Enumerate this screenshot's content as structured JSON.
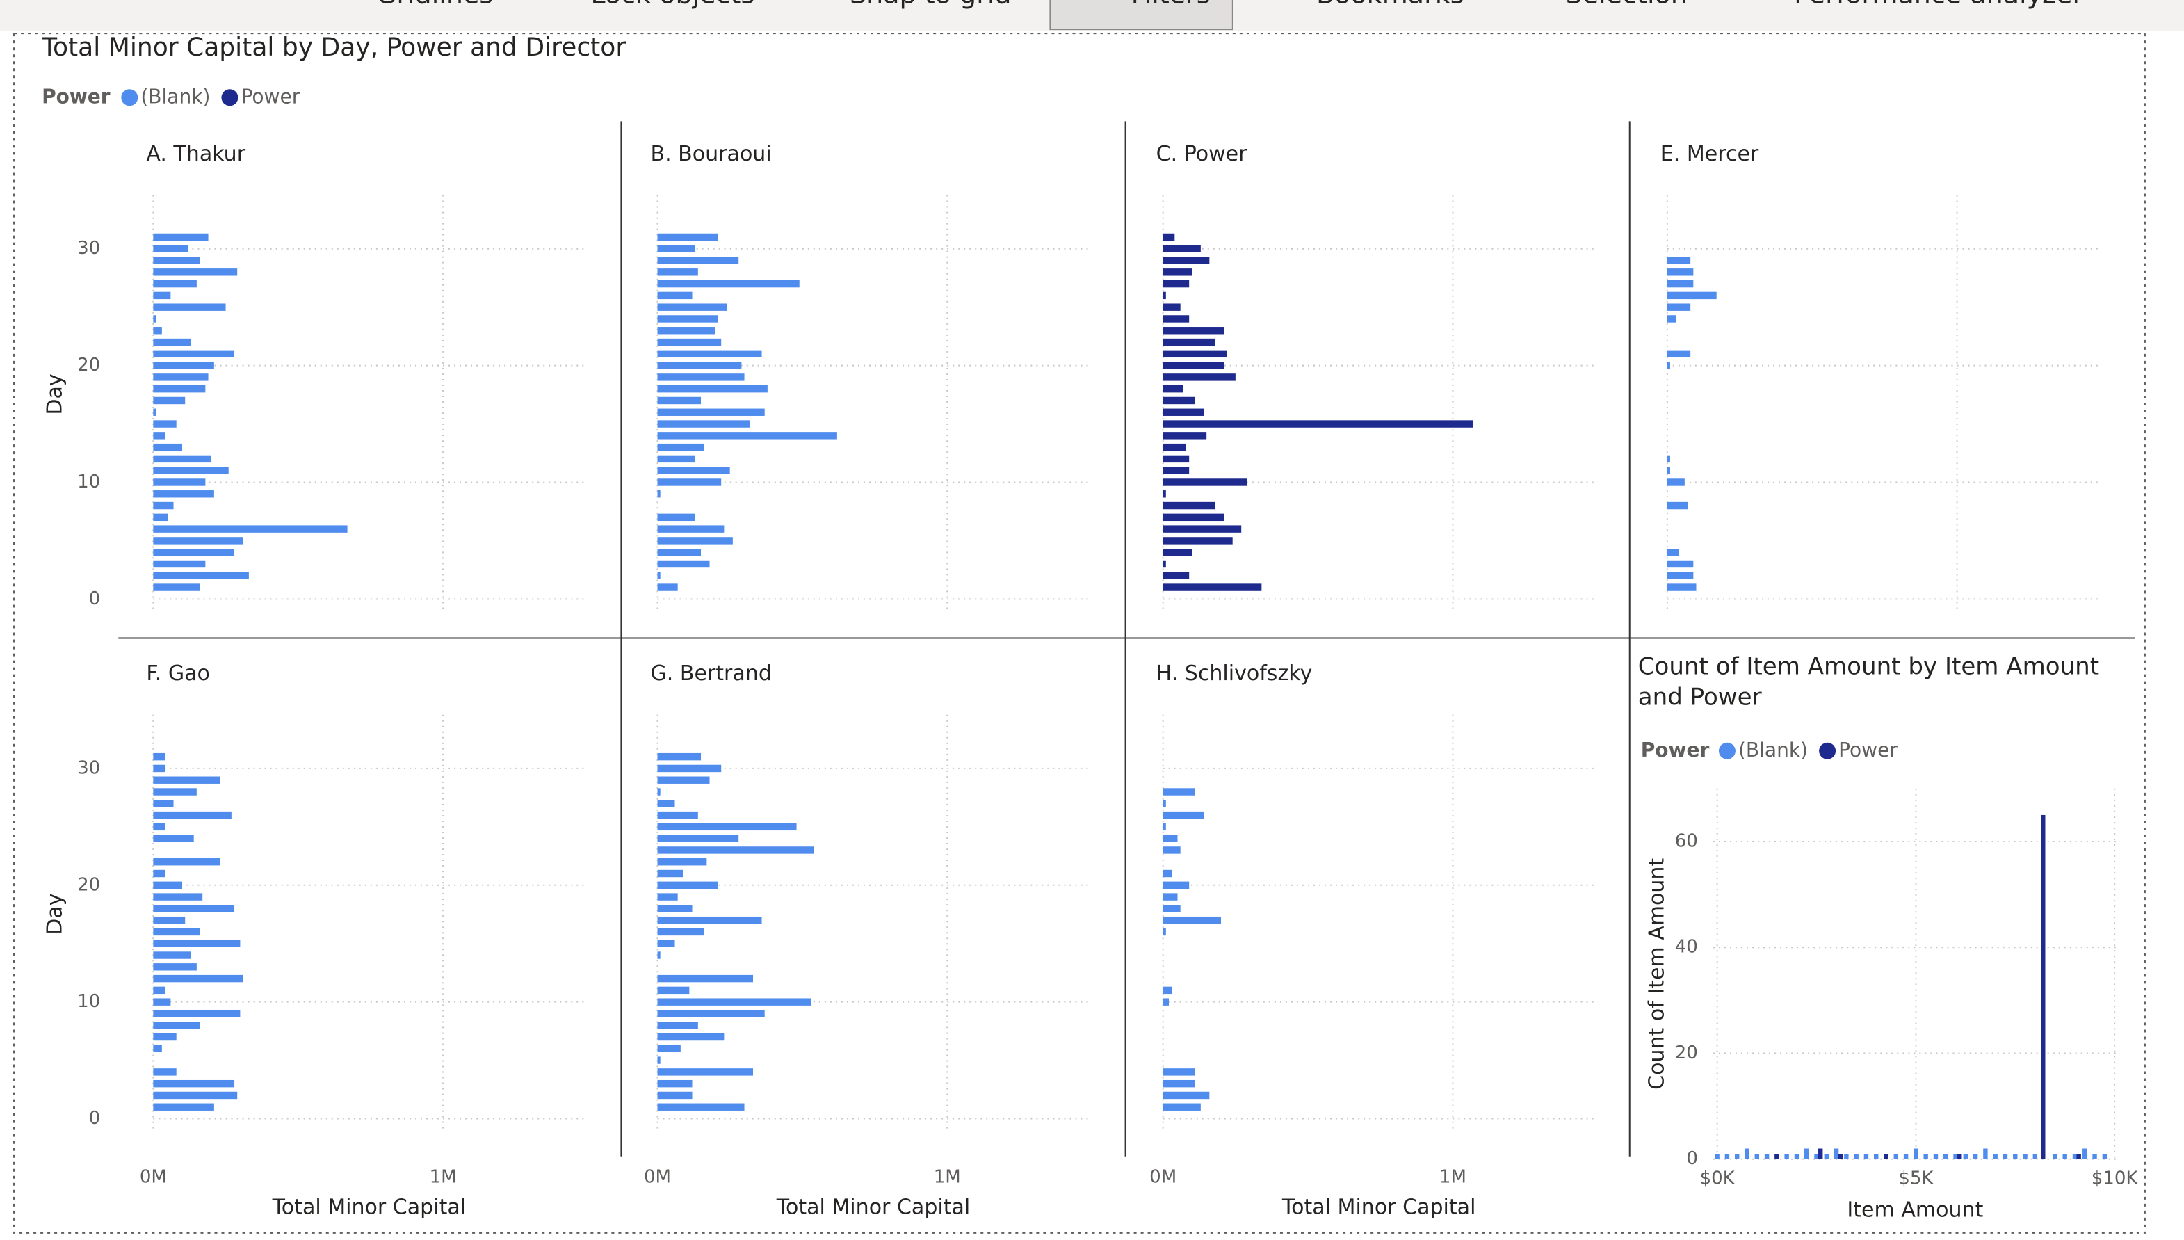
{
  "toolbar": [
    "Gridlines",
    "Lock objects",
    "Snap to grid",
    "Filters",
    "Bookmarks",
    "Selection",
    "Performance analyzer"
  ],
  "chart_data": [
    {
      "type": "bar",
      "orientation": "horizontal",
      "title": "Total Minor Capital by Day, Power and Director",
      "legend_title": "Power",
      "legend": [
        {
          "name": "(Blank)",
          "color": "#4f8cee"
        },
        {
          "name": "Power",
          "color": "#1f2a8f"
        }
      ],
      "y_label": "Day",
      "x_label": "Total Minor Capital",
      "y": [
        1,
        2,
        3,
        4,
        5,
        6,
        7,
        8,
        9,
        10,
        11,
        12,
        13,
        14,
        15,
        16,
        17,
        18,
        19,
        20,
        21,
        22,
        23,
        24,
        25,
        26,
        27,
        28,
        29,
        30,
        31
      ],
      "ylim": [
        -1.2,
        34.6
      ],
      "yticks": [
        0,
        10,
        20,
        30
      ],
      "xlim": [
        0,
        1.49
      ],
      "xticks": [
        {
          "value": 0,
          "label": "0M"
        },
        {
          "value": 1,
          "label": "1M"
        }
      ],
      "grid": true,
      "panels": [
        {
          "title": "A. Thakur",
          "color": "#4f8cee",
          "values": [
            0.16,
            0.33,
            0.18,
            0.28,
            0.31,
            0.67,
            0.05,
            0.07,
            0.21,
            0.18,
            0.26,
            0.2,
            0.1,
            0.04,
            0.08,
            0.01,
            0.11,
            0.18,
            0.19,
            0.21,
            0.28,
            0.13,
            0.03,
            0.01,
            0.25,
            0.06,
            0.15,
            0.29,
            0.16,
            0.12,
            0.19
          ]
        },
        {
          "title": "B. Bouraoui",
          "color": "#4f8cee",
          "values": [
            0.07,
            0.01,
            0.18,
            0.15,
            0.26,
            0.23,
            0.13,
            null,
            0.01,
            0.22,
            0.25,
            0.13,
            0.16,
            0.62,
            0.32,
            0.37,
            0.15,
            0.38,
            0.3,
            0.29,
            0.36,
            0.22,
            0.2,
            0.21,
            0.24,
            0.12,
            0.49,
            0.14,
            0.28,
            0.13,
            0.21
          ]
        },
        {
          "title": "C. Power",
          "color": "#1f2a8f",
          "values": [
            0.34,
            0.09,
            0.01,
            0.1,
            0.24,
            0.27,
            0.21,
            0.18,
            0.01,
            0.29,
            0.09,
            0.09,
            0.08,
            0.15,
            1.07,
            0.14,
            0.11,
            0.07,
            0.25,
            0.21,
            0.22,
            0.18,
            0.21,
            0.09,
            0.06,
            0.01,
            0.09,
            0.1,
            0.16,
            0.13,
            0.04
          ]
        },
        {
          "title": "E. Mercer",
          "color": "#4f8cee",
          "values": [
            0.1,
            0.09,
            0.09,
            0.04,
            null,
            null,
            null,
            0.07,
            null,
            0.06,
            0.01,
            0.01,
            null,
            null,
            null,
            null,
            null,
            null,
            null,
            0.01,
            0.08,
            null,
            null,
            0.03,
            0.08,
            0.17,
            0.09,
            0.09,
            0.08,
            null,
            null
          ]
        },
        {
          "title": "F. Gao",
          "color": "#4f8cee",
          "values": [
            0.21,
            0.29,
            0.28,
            0.08,
            null,
            0.03,
            0.08,
            0.16,
            0.3,
            0.06,
            0.04,
            0.31,
            0.15,
            0.13,
            0.3,
            0.16,
            0.11,
            0.28,
            0.17,
            0.1,
            0.04,
            0.23,
            null,
            0.14,
            0.04,
            0.27,
            0.07,
            0.15,
            0.23,
            0.04,
            0.04
          ]
        },
        {
          "title": "G. Bertrand",
          "color": "#4f8cee",
          "values": [
            0.3,
            0.12,
            0.12,
            0.33,
            0.01,
            0.08,
            0.23,
            0.14,
            0.37,
            0.53,
            0.11,
            0.33,
            null,
            0.01,
            0.06,
            0.16,
            0.36,
            0.12,
            0.07,
            0.21,
            0.09,
            0.17,
            0.54,
            0.28,
            0.48,
            0.14,
            0.06,
            0.01,
            0.18,
            0.22,
            0.15
          ]
        },
        {
          "title": "H. Schlivofszky",
          "color": "#4f8cee",
          "values": [
            0.13,
            0.16,
            0.11,
            0.11,
            null,
            null,
            null,
            null,
            null,
            0.02,
            0.03,
            null,
            null,
            null,
            null,
            0.01,
            0.2,
            0.06,
            0.05,
            0.09,
            0.03,
            null,
            0.06,
            0.05,
            0.01,
            0.14,
            0.01,
            0.11,
            null,
            null,
            null
          ]
        }
      ]
    },
    {
      "type": "column",
      "title": "Count of Item Amount by Item Amount and Power",
      "legend_title": "Power",
      "y_label": "Count of Item Amount",
      "x_label": "Item Amount",
      "xlim": [
        -100,
        10100
      ],
      "xticks": [
        {
          "value": 0,
          "label": "$0K"
        },
        {
          "value": 5000,
          "label": "$5K"
        },
        {
          "value": 10000,
          "label": "$10K"
        }
      ],
      "ylim": [
        0,
        70
      ],
      "yticks": [
        0,
        20,
        40,
        60
      ],
      "grid": true,
      "series": [
        {
          "name": "(Blank)",
          "color": "#4f8cee",
          "x": [
            0,
            250,
            500,
            750,
            1000,
            1250,
            1750,
            2000,
            2250,
            2500,
            2750,
            3000,
            3250,
            3500,
            3750,
            4000,
            4500,
            4750,
            5000,
            5250,
            5500,
            5750,
            6000,
            6250,
            6500,
            6750,
            7000,
            7250,
            7500,
            7750,
            8000,
            8500,
            8750,
            9000,
            9250,
            9500,
            9750
          ],
          "values": [
            1,
            1,
            1,
            2,
            1,
            1,
            1,
            1,
            2,
            1,
            1,
            2,
            1,
            1,
            1,
            1,
            1,
            1,
            2,
            1,
            1,
            1,
            1,
            1,
            1,
            2,
            1,
            1,
            1,
            1,
            1,
            1,
            1,
            1,
            2,
            1,
            1
          ]
        },
        {
          "name": "Power",
          "color": "#1f2a8f",
          "x": [
            1500,
            2600,
            3100,
            4250,
            6100,
            8200,
            9100
          ],
          "values": [
            1,
            2,
            1,
            1,
            1,
            65,
            1
          ]
        }
      ]
    }
  ]
}
